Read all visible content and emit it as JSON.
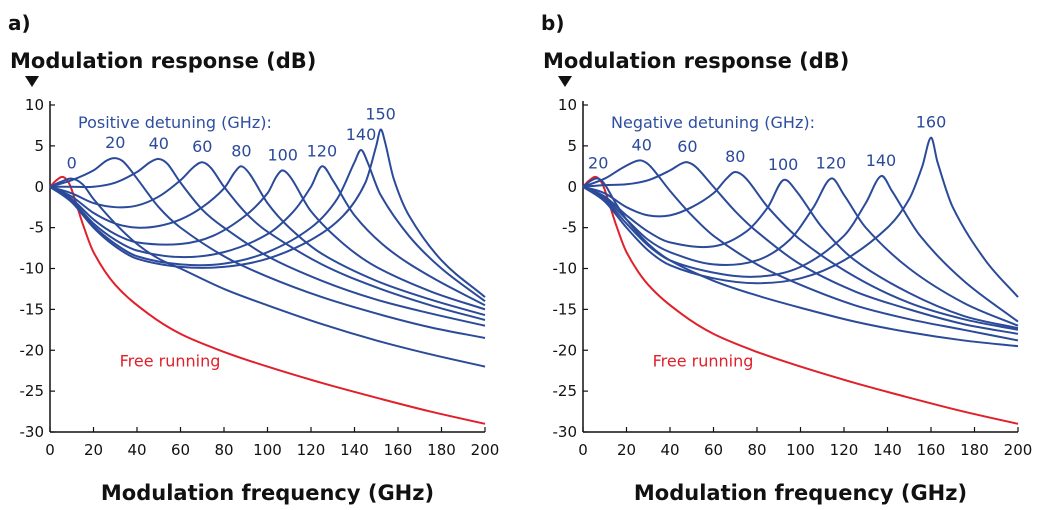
{
  "chart_data": [
    {
      "type": "line",
      "panel": "a)",
      "ylabel": "Modulation response (dB)",
      "xlabel": "Modulation frequency (GHz)",
      "annotation": "Positive detuning (GHz):",
      "annotation_color": "#2e4ea0",
      "xlim": [
        0,
        200
      ],
      "ylim": [
        -30,
        10
      ],
      "xticks": [
        0,
        20,
        40,
        60,
        80,
        100,
        120,
        140,
        160,
        180,
        200
      ],
      "yticks": [
        10,
        5,
        0,
        -5,
        -10,
        -15,
        -20,
        -25,
        -30
      ],
      "series": [
        {
          "name": "Free running",
          "color": "#e0202a",
          "x": [
            0,
            3,
            6,
            9,
            12,
            15,
            20,
            30,
            45,
            60,
            80,
            100,
            125,
            150,
            175,
            200
          ],
          "values": [
            0,
            0.8,
            1.2,
            0.3,
            -2,
            -4.5,
            -8,
            -12,
            -15.5,
            -18,
            -20.2,
            -22,
            -24,
            -25.8,
            -27.5,
            -29
          ]
        },
        {
          "name": "0",
          "color": "#2b4a9a",
          "x": [
            0,
            5,
            10,
            15,
            20,
            30,
            40,
            50,
            60,
            80,
            100,
            125,
            150,
            175,
            200
          ],
          "values": [
            0,
            0.6,
            1,
            0.3,
            -1.5,
            -4.5,
            -7,
            -8.8,
            -10,
            -12.5,
            -14.5,
            -16.8,
            -18.8,
            -20.5,
            -22
          ]
        },
        {
          "name": "20",
          "color": "#2b4a9a",
          "x": [
            0,
            10,
            20,
            26,
            30,
            34,
            40,
            50,
            60,
            80,
            100,
            125,
            150,
            175,
            200
          ],
          "values": [
            0,
            0.8,
            2,
            3.2,
            3.5,
            3,
            1,
            -2.5,
            -5,
            -8.5,
            -11,
            -13.5,
            -15.5,
            -17.2,
            -18.5
          ]
        },
        {
          "name": "40",
          "color": "#2b4a9a",
          "x": [
            0,
            10,
            20,
            30,
            40,
            46,
            50,
            54,
            60,
            70,
            80,
            100,
            125,
            150,
            175,
            200
          ],
          "values": [
            0,
            0,
            0,
            0.5,
            1.8,
            3,
            3.4,
            2.8,
            0.5,
            -2.8,
            -5,
            -8.5,
            -11.5,
            -13.8,
            -15.5,
            -17
          ]
        },
        {
          "name": "60",
          "color": "#2b4a9a",
          "x": [
            0,
            10,
            20,
            30,
            40,
            50,
            60,
            66,
            70,
            74,
            80,
            90,
            100,
            125,
            150,
            175,
            200
          ],
          "values": [
            0,
            -0.8,
            -2,
            -2.5,
            -2.3,
            -1.2,
            0.8,
            2.4,
            3,
            2.3,
            0,
            -3.2,
            -5.5,
            -9.5,
            -12.3,
            -14.5,
            -16.3
          ]
        },
        {
          "name": "80",
          "color": "#2b4a9a",
          "x": [
            0,
            10,
            20,
            30,
            40,
            50,
            60,
            70,
            80,
            85,
            88,
            92,
            100,
            110,
            125,
            150,
            175,
            200
          ],
          "values": [
            0,
            -1.2,
            -3.2,
            -4.5,
            -5,
            -4.8,
            -4,
            -2.5,
            -0.2,
            1.8,
            2.5,
            1.5,
            -2,
            -5,
            -8.2,
            -11.5,
            -13.8,
            -15.7
          ]
        },
        {
          "name": "100",
          "color": "#2b4a9a",
          "x": [
            0,
            10,
            20,
            30,
            40,
            60,
            75,
            90,
            100,
            104,
            107,
            111,
            120,
            135,
            150,
            175,
            200
          ],
          "values": [
            0,
            -1.5,
            -4,
            -5.8,
            -6.8,
            -7,
            -6,
            -3.5,
            -0.8,
            1.2,
            2,
            1,
            -3,
            -7,
            -9.8,
            -12.8,
            -15
          ]
        },
        {
          "name": "120",
          "color": "#2b4a9a",
          "x": [
            0,
            10,
            20,
            30,
            40,
            60,
            80,
            100,
            112,
            120,
            125,
            130,
            140,
            155,
            175,
            200
          ],
          "values": [
            0,
            -1.7,
            -4.5,
            -6.5,
            -7.8,
            -8.6,
            -8,
            -5.8,
            -3,
            0,
            2.5,
            0.8,
            -3.5,
            -7.5,
            -11,
            -14.5
          ]
        },
        {
          "name": "140",
          "color": "#2b4a9a",
          "x": [
            0,
            10,
            20,
            30,
            40,
            60,
            80,
            100,
            120,
            132,
            140,
            143,
            146,
            152,
            165,
            180,
            200
          ],
          "values": [
            0,
            -1.8,
            -4.8,
            -7,
            -8.5,
            -9.5,
            -9.4,
            -8,
            -5,
            -1.5,
            3,
            4.5,
            3,
            -1,
            -6,
            -10,
            -14
          ]
        },
        {
          "name": "150",
          "color": "#2b4a9a",
          "x": [
            0,
            10,
            20,
            30,
            40,
            60,
            80,
            100,
            120,
            135,
            145,
            150,
            152,
            154,
            158,
            165,
            180,
            200
          ],
          "values": [
            0,
            -1.9,
            -5,
            -7.3,
            -8.8,
            -9.8,
            -9.8,
            -8.8,
            -6.5,
            -3.5,
            0.5,
            5,
            7,
            5.5,
            1,
            -3.5,
            -9,
            -13.5
          ]
        }
      ]
    },
    {
      "type": "line",
      "panel": "b)",
      "ylabel": "Modulation response (dB)",
      "xlabel": "Modulation frequency (GHz)",
      "annotation": "Negative detuning (GHz):",
      "annotation_color": "#2e4ea0",
      "xlim": [
        0,
        200
      ],
      "ylim": [
        -30,
        10
      ],
      "xticks": [
        0,
        20,
        40,
        60,
        80,
        100,
        120,
        140,
        160,
        180,
        200
      ],
      "yticks": [
        10,
        5,
        0,
        -5,
        -10,
        -15,
        -20,
        -25,
        -30
      ],
      "series": [
        {
          "name": "Free running",
          "color": "#e0202a",
          "x": [
            0,
            3,
            6,
            9,
            12,
            15,
            20,
            30,
            45,
            60,
            80,
            100,
            125,
            150,
            175,
            200
          ],
          "values": [
            0,
            0.8,
            1.2,
            0.3,
            -2,
            -4.5,
            -8,
            -12,
            -15.5,
            -18,
            -20.2,
            -22,
            -24,
            -25.8,
            -27.5,
            -29
          ]
        },
        {
          "name": "20",
          "color": "#2b4a9a",
          "x": [
            0,
            4,
            7,
            10,
            15,
            20,
            30,
            40,
            60,
            80,
            100,
            125,
            150,
            175,
            200
          ],
          "values": [
            0,
            0.8,
            1,
            0.3,
            -2,
            -4,
            -7,
            -9,
            -11.5,
            -13.3,
            -14.8,
            -16.5,
            -17.8,
            -18.8,
            -19.5
          ]
        },
        {
          "name": "40",
          "color": "#2b4a9a",
          "x": [
            0,
            10,
            18,
            24,
            27,
            31,
            40,
            50,
            60,
            80,
            100,
            125,
            150,
            175,
            200
          ],
          "values": [
            0,
            1,
            2.3,
            3.1,
            3.2,
            2.5,
            -0.5,
            -3.5,
            -6,
            -9.5,
            -12,
            -14.5,
            -16.2,
            -17.5,
            -18.8
          ]
        },
        {
          "name": "60",
          "color": "#2b4a9a",
          "x": [
            0,
            10,
            20,
            30,
            40,
            45,
            48,
            52,
            60,
            70,
            80,
            100,
            125,
            150,
            175,
            200
          ],
          "values": [
            0,
            0.2,
            0.3,
            0.8,
            2,
            2.8,
            3,
            2.4,
            0,
            -3,
            -5.5,
            -9.5,
            -12.8,
            -15,
            -16.8,
            -18
          ]
        },
        {
          "name": "80",
          "color": "#2b4a9a",
          "x": [
            0,
            10,
            20,
            30,
            40,
            50,
            60,
            66,
            70,
            75,
            85,
            100,
            125,
            150,
            175,
            200
          ],
          "values": [
            0,
            -0.8,
            -2.5,
            -3.5,
            -3.5,
            -2.5,
            -0.8,
            1,
            1.8,
            1,
            -2.5,
            -6.5,
            -11,
            -14.2,
            -16.2,
            -17.5
          ]
        },
        {
          "name": "100",
          "color": "#2b4a9a",
          "x": [
            0,
            10,
            20,
            30,
            40,
            60,
            75,
            85,
            92,
            98,
            110,
            125,
            150,
            175,
            200
          ],
          "values": [
            0,
            -1.2,
            -3.5,
            -5.5,
            -6.8,
            -7.3,
            -5.5,
            -2.5,
            0.8,
            -0.5,
            -5,
            -9,
            -13,
            -15.8,
            -17.3
          ]
        },
        {
          "name": "120",
          "color": "#2b4a9a",
          "x": [
            0,
            10,
            20,
            30,
            40,
            60,
            80,
            95,
            106,
            114,
            120,
            130,
            150,
            175,
            200
          ],
          "values": [
            0,
            -1.4,
            -4,
            -6.5,
            -8,
            -9.5,
            -9,
            -6.5,
            -2.5,
            1,
            -1,
            -5,
            -10,
            -14.2,
            -17
          ]
        },
        {
          "name": "140",
          "color": "#2b4a9a",
          "x": [
            0,
            10,
            20,
            30,
            40,
            60,
            80,
            100,
            120,
            130,
            137,
            142,
            155,
            175,
            200
          ],
          "values": [
            0,
            -1.6,
            -4.5,
            -7.2,
            -9,
            -10.5,
            -11,
            -9.8,
            -6,
            -2,
            1.3,
            -0.5,
            -6,
            -11.5,
            -16.5
          ]
        },
        {
          "name": "160",
          "color": "#2b4a9a",
          "x": [
            0,
            10,
            20,
            30,
            40,
            60,
            80,
            100,
            120,
            140,
            150,
            156,
            160,
            163,
            170,
            185,
            200
          ],
          "values": [
            0,
            -1.8,
            -5,
            -7.8,
            -9.6,
            -11.2,
            -11.8,
            -11.2,
            -9,
            -5,
            -1.5,
            2.5,
            6,
            3,
            -2.5,
            -9,
            -13.5
          ]
        }
      ]
    }
  ]
}
